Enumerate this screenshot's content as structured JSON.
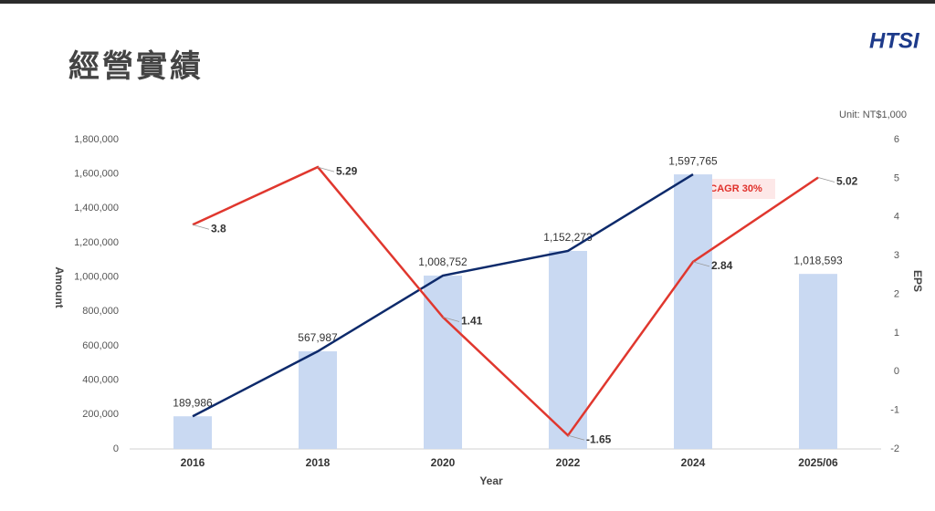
{
  "chart_data": {
    "type": "bar",
    "title": "經營實績",
    "logo": "HTSI",
    "unit_note": "Unit: NT$1,000",
    "annotation": "CAGR 30%",
    "x_label": "Year",
    "y_label": "Amount",
    "y2_label": "EPS",
    "categories": [
      "2016",
      "2018",
      "2020",
      "2022",
      "2024",
      "2025/06"
    ],
    "series": [
      {
        "type": "bar",
        "color": "#c9d9f2",
        "values": [
          189986,
          567987,
          1008752,
          1152273,
          1597765,
          1018593
        ],
        "value_labels": [
          "189,986",
          "567,987",
          "1,008,752",
          "1,152,273",
          "1,597,765",
          "1,018,593"
        ]
      },
      {
        "type": "line",
        "color": "#0d2a6b",
        "values": [
          189986,
          567987,
          1008752,
          1152273,
          1597765,
          null
        ]
      },
      {
        "type": "line",
        "axis": "y2",
        "color": "#e0372e",
        "values": [
          3.8,
          5.29,
          1.41,
          -1.65,
          2.84,
          5.02
        ]
      }
    ],
    "ylim": [
      0,
      1800000
    ],
    "yticks": [
      0,
      {
        "value": 200000,
        "label": "200,000"
      },
      {
        "value": 400000,
        "label": "400,000"
      },
      {
        "value": 600000,
        "label": "600,000"
      },
      {
        "value": 800000,
        "label": "800,000"
      },
      {
        "value": 1000000,
        "label": "1,000,000"
      },
      {
        "value": 1200000,
        "label": "1,200,000"
      },
      {
        "value": 1400000,
        "label": "1,400,000"
      },
      {
        "value": 1600000,
        "label": "1,600,000"
      },
      {
        "value": 1800000,
        "label": "1,800,000"
      }
    ],
    "y2lim": [
      -2,
      6
    ],
    "y2ticks": [
      -2,
      -1,
      0,
      1,
      2,
      3,
      4,
      5,
      6
    ],
    "grid": false
  }
}
